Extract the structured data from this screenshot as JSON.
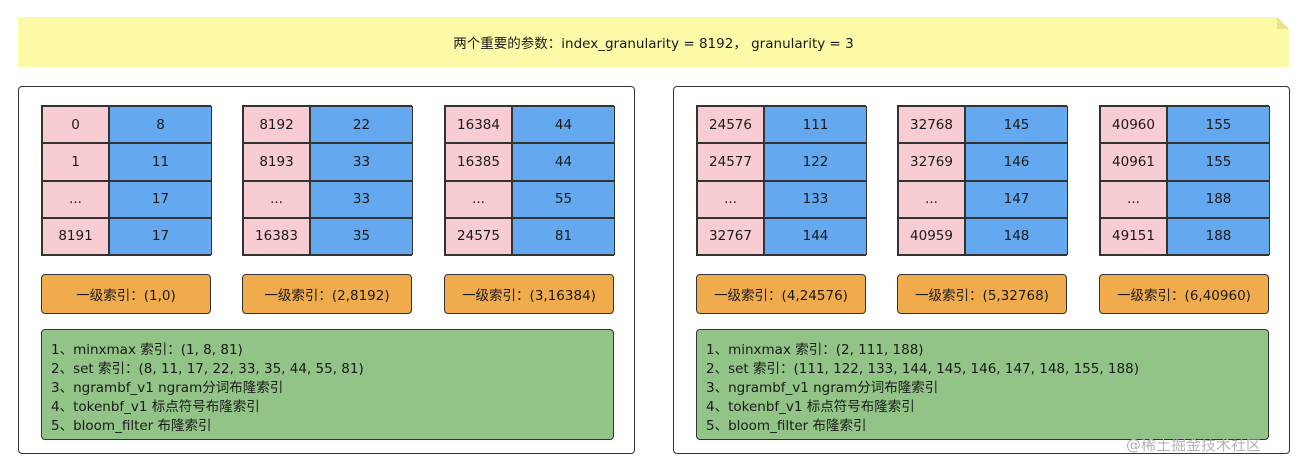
{
  "note": {
    "text": "两个重要的参数：index_granularity = 8192， granularity = 3"
  },
  "panels": [
    {
      "granules": [
        {
          "rows": [
            [
              "0",
              "8"
            ],
            [
              "1",
              "11"
            ],
            [
              "...",
              "17"
            ],
            [
              "8191",
              "17"
            ]
          ],
          "primary_index": "一级索引：(1,0)"
        },
        {
          "rows": [
            [
              "8192",
              "22"
            ],
            [
              "8193",
              "33"
            ],
            [
              "...",
              "33"
            ],
            [
              "16383",
              "35"
            ]
          ],
          "primary_index": "一级索引：(2,8192)"
        },
        {
          "rows": [
            [
              "16384",
              "44"
            ],
            [
              "16385",
              "44"
            ],
            [
              "...",
              "55"
            ],
            [
              "24575",
              "81"
            ]
          ],
          "primary_index": "一级索引：(3,16384)"
        }
      ],
      "skip_index_lines": [
        "1、minxmax 索引：(1, 8, 81)",
        "2、set 索引：(8, 11, 17, 22, 33, 35, 44, 55, 81)",
        "3、ngrambf_v1 ngram分词布隆索引",
        "4、tokenbf_v1 标点符号布隆索引",
        "5、bloom_filter 布隆索引"
      ]
    },
    {
      "granules": [
        {
          "rows": [
            [
              "24576",
              "111"
            ],
            [
              "24577",
              "122"
            ],
            [
              "...",
              "133"
            ],
            [
              "32767",
              "144"
            ]
          ],
          "primary_index": "一级索引：(4,24576)"
        },
        {
          "rows": [
            [
              "32768",
              "145"
            ],
            [
              "32769",
              "146"
            ],
            [
              "...",
              "147"
            ],
            [
              "40959",
              "148"
            ]
          ],
          "primary_index": "一级索引：(5,32768)"
        },
        {
          "rows": [
            [
              "40960",
              "155"
            ],
            [
              "40961",
              "155"
            ],
            [
              "...",
              "188"
            ],
            [
              "49151",
              "188"
            ]
          ],
          "primary_index": "一级索引：(6,40960)"
        }
      ],
      "skip_index_lines": [
        "1、minxmax 索引：(2, 111, 188)",
        "2、set 索引：(111, 122, 133, 144, 145, 146, 147, 148, 155, 188)",
        "3、ngrambf_v1 ngram分词布隆索引",
        "4、tokenbf_v1 标点符号布隆索引",
        "5、bloom_filter 布隆索引"
      ]
    }
  ],
  "watermark": "@稀土掘金技术社区",
  "colors": {
    "note_bg": "#fdfaa7",
    "key_cell": "#f8ccd3",
    "value_cell": "#64a8ef",
    "primary_index": "#f0ac4c",
    "skip_index": "#93c487"
  }
}
